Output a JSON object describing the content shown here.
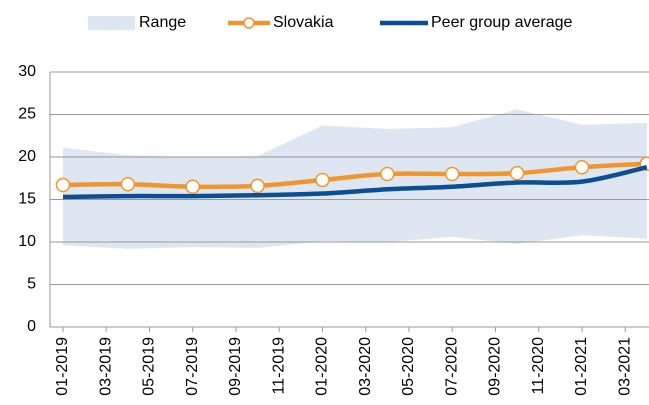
{
  "chart_data": {
    "type": "line",
    "x": [
      0,
      3,
      6,
      9,
      12,
      15,
      18,
      21,
      24,
      27
    ],
    "xlim": [
      -0.6,
      27.1
    ],
    "xticks": [
      {
        "value": 0,
        "label": "01-2019"
      },
      {
        "value": 2,
        "label": "03-2019"
      },
      {
        "value": 4,
        "label": "05-2019"
      },
      {
        "value": 6,
        "label": "07-2019"
      },
      {
        "value": 8,
        "label": "09-2019"
      },
      {
        "value": 10,
        "label": "11-2019"
      },
      {
        "value": 12,
        "label": "01-2020"
      },
      {
        "value": 14,
        "label": "03-2020"
      },
      {
        "value": 16,
        "label": "05-2020"
      },
      {
        "value": 18,
        "label": "07-2020"
      },
      {
        "value": 20,
        "label": "09-2020"
      },
      {
        "value": 22,
        "label": "11-2020"
      },
      {
        "value": 24,
        "label": "01-2021"
      },
      {
        "value": 26,
        "label": "03-2021"
      }
    ],
    "ylim": [
      0,
      30
    ],
    "yticks": [
      0,
      5,
      10,
      15,
      20,
      25,
      30
    ],
    "grid": true,
    "range": {
      "name": "Range",
      "color": "#dde6f1",
      "low": [
        9.6,
        9.2,
        9.4,
        9.3,
        10.1,
        10.0,
        10.6,
        9.8,
        10.8,
        10.4
      ],
      "high": [
        21.1,
        20.2,
        20.0,
        20.1,
        23.7,
        23.3,
        23.5,
        25.6,
        23.8,
        24.0
      ]
    },
    "series": [
      {
        "name": "Slovakia",
        "color": "#f0962c",
        "markers": true,
        "values": [
          16.7,
          16.8,
          16.5,
          16.6,
          17.3,
          18.0,
          18.0,
          18.1,
          18.8,
          19.2
        ]
      },
      {
        "name": "Peer group average",
        "color": "#0b4e92",
        "markers": false,
        "values": [
          15.3,
          15.4,
          15.4,
          15.5,
          15.7,
          16.2,
          16.5,
          17.0,
          17.1,
          18.8
        ]
      }
    ]
  }
}
